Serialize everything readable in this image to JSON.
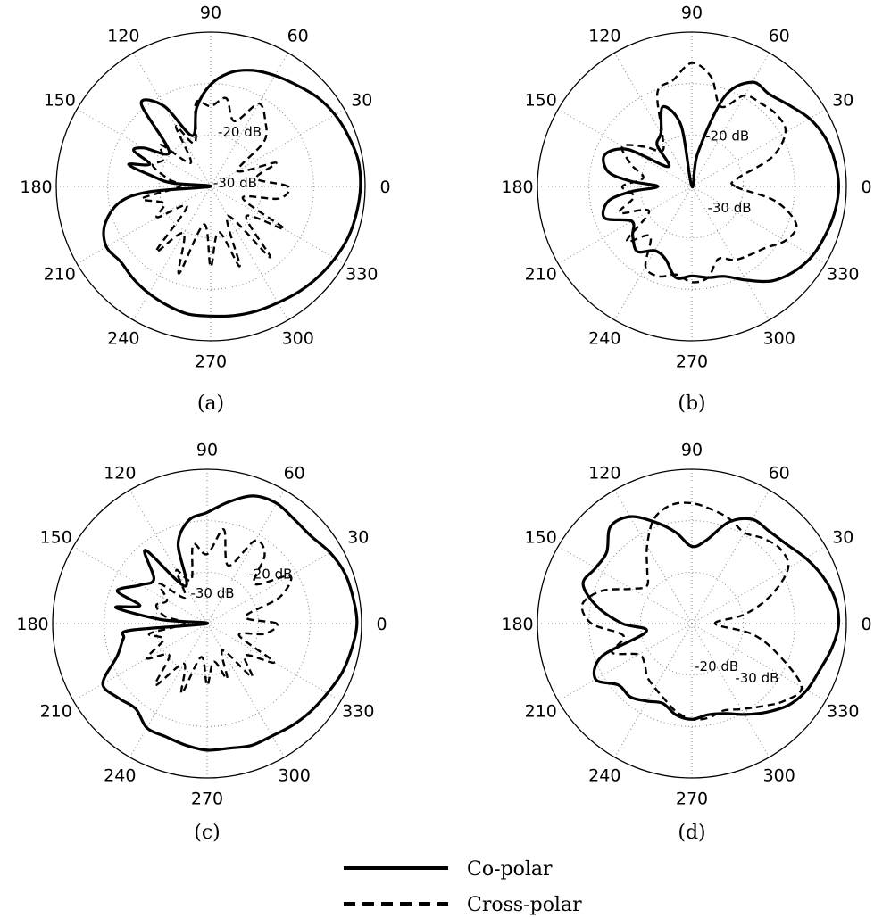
{
  "colors": {
    "curve": "#000000",
    "grid": "#808080",
    "background": "#ffffff"
  },
  "legend": {
    "entries": [
      {
        "label": "Co-polar",
        "style": "solid"
      },
      {
        "label": "Cross-polar",
        "style": "dashed"
      }
    ]
  },
  "chart_data": [
    {
      "type": "polar-line",
      "caption": "(a)",
      "angle_ticks": [
        "0",
        "30",
        "60",
        "90",
        "120",
        "150",
        "180",
        "210",
        "240",
        "270",
        "300",
        "330"
      ],
      "ring_labels": [
        {
          "text": "-20 dB",
          "angle_deg": 62,
          "radius": 0.4
        },
        {
          "text": "-30 dB",
          "angle_deg": 8,
          "radius": 0.16
        }
      ],
      "series": [
        {
          "name": "Co-polar",
          "style": "solid",
          "theta_deg": [
            0,
            10,
            20,
            30,
            40,
            50,
            60,
            70,
            80,
            90,
            100,
            110,
            120,
            130,
            140,
            150,
            155,
            160,
            165,
            170,
            175,
            180,
            185,
            190,
            200,
            210,
            220,
            230,
            240,
            250,
            260,
            270,
            280,
            290,
            300,
            310,
            320,
            330,
            340,
            350,
            360
          ],
          "r": [
            0.97,
            0.97,
            0.95,
            0.93,
            0.9,
            0.86,
            0.83,
            0.8,
            0.75,
            0.66,
            0.52,
            0.35,
            0.6,
            0.7,
            0.35,
            0.5,
            0.55,
            0.42,
            0.55,
            0.38,
            0.25,
            0.0,
            0.4,
            0.6,
            0.73,
            0.78,
            0.76,
            0.78,
            0.8,
            0.82,
            0.84,
            0.84,
            0.85,
            0.86,
            0.87,
            0.89,
            0.91,
            0.93,
            0.95,
            0.96,
            0.97
          ]
        },
        {
          "name": "Cross-polar",
          "style": "dashed",
          "theta_deg": [
            0,
            10,
            20,
            30,
            40,
            50,
            60,
            70,
            80,
            90,
            100,
            110,
            120,
            130,
            140,
            150,
            160,
            170,
            180,
            190,
            200,
            210,
            220,
            230,
            240,
            250,
            260,
            270,
            280,
            290,
            300,
            310,
            320,
            330,
            340,
            350,
            360
          ],
          "r": [
            0.5,
            0.3,
            0.45,
            0.2,
            0.45,
            0.55,
            0.62,
            0.45,
            0.58,
            0.52,
            0.55,
            0.3,
            0.45,
            0.2,
            0.42,
            0.35,
            0.4,
            0.28,
            0.2,
            0.45,
            0.32,
            0.4,
            0.2,
            0.55,
            0.35,
            0.6,
            0.25,
            0.52,
            0.3,
            0.55,
            0.22,
            0.6,
            0.3,
            0.55,
            0.22,
            0.45,
            0.5
          ]
        }
      ]
    },
    {
      "type": "polar-line",
      "caption": "(b)",
      "angle_ticks": [
        "0",
        "30",
        "60",
        "90",
        "120",
        "150",
        "180",
        "210",
        "240",
        "270",
        "300",
        "330"
      ],
      "ring_labels": [
        {
          "text": "-20 dB",
          "angle_deg": 55,
          "radius": 0.4
        },
        {
          "text": "-30 dB",
          "angle_deg": 330,
          "radius": 0.28
        }
      ],
      "series": [
        {
          "name": "Co-polar",
          "style": "solid",
          "theta_deg": [
            0,
            10,
            20,
            30,
            40,
            50,
            60,
            70,
            80,
            90,
            100,
            110,
            120,
            130,
            140,
            150,
            160,
            170,
            175,
            180,
            185,
            190,
            200,
            210,
            220,
            230,
            240,
            250,
            260,
            270,
            280,
            290,
            300,
            310,
            320,
            330,
            340,
            350,
            360
          ],
          "r": [
            0.95,
            0.94,
            0.92,
            0.88,
            0.82,
            0.78,
            0.78,
            0.62,
            0.22,
            0.0,
            0.4,
            0.55,
            0.4,
            0.35,
            0.2,
            0.48,
            0.6,
            0.55,
            0.4,
            0.22,
            0.4,
            0.55,
            0.6,
            0.45,
            0.5,
            0.55,
            0.48,
            0.5,
            0.6,
            0.58,
            0.6,
            0.62,
            0.7,
            0.8,
            0.86,
            0.9,
            0.92,
            0.94,
            0.95
          ]
        },
        {
          "name": "Cross-polar",
          "style": "dashed",
          "theta_deg": [
            0,
            10,
            20,
            30,
            40,
            50,
            60,
            70,
            80,
            90,
            100,
            110,
            120,
            130,
            140,
            150,
            160,
            170,
            180,
            190,
            200,
            210,
            220,
            230,
            240,
            250,
            260,
            270,
            280,
            290,
            300,
            310,
            320,
            330,
            340,
            350,
            360
          ],
          "r": [
            0.28,
            0.3,
            0.55,
            0.7,
            0.72,
            0.7,
            0.68,
            0.55,
            0.72,
            0.8,
            0.7,
            0.65,
            0.38,
            0.3,
            0.4,
            0.52,
            0.42,
            0.32,
            0.45,
            0.38,
            0.5,
            0.32,
            0.55,
            0.42,
            0.6,
            0.62,
            0.58,
            0.62,
            0.6,
            0.5,
            0.55,
            0.58,
            0.62,
            0.7,
            0.72,
            0.55,
            0.28
          ]
        }
      ]
    },
    {
      "type": "polar-line",
      "caption": "(c)",
      "angle_ticks": [
        "0",
        "30",
        "60",
        "90",
        "120",
        "150",
        "180",
        "210",
        "240",
        "270",
        "300",
        "330"
      ],
      "ring_labels": [
        {
          "text": "-20 dB",
          "angle_deg": 38,
          "radius": 0.52
        },
        {
          "text": "-30 dB",
          "angle_deg": 80,
          "radius": 0.2
        }
      ],
      "series": [
        {
          "name": "Co-polar",
          "style": "solid",
          "theta_deg": [
            0,
            10,
            20,
            30,
            40,
            50,
            60,
            70,
            80,
            90,
            100,
            110,
            120,
            130,
            140,
            150,
            160,
            165,
            170,
            175,
            180,
            185,
            190,
            200,
            210,
            220,
            230,
            240,
            250,
            260,
            270,
            280,
            290,
            300,
            310,
            320,
            330,
            340,
            350,
            360
          ],
          "r": [
            0.97,
            0.96,
            0.95,
            0.92,
            0.88,
            0.88,
            0.9,
            0.88,
            0.8,
            0.72,
            0.68,
            0.55,
            0.28,
            0.62,
            0.45,
            0.5,
            0.62,
            0.45,
            0.6,
            0.3,
            0.0,
            0.5,
            0.55,
            0.62,
            0.78,
            0.75,
            0.72,
            0.78,
            0.78,
            0.8,
            0.82,
            0.82,
            0.84,
            0.84,
            0.86,
            0.88,
            0.9,
            0.93,
            0.95,
            0.97
          ]
        },
        {
          "name": "Cross-polar",
          "style": "dashed",
          "theta_deg": [
            0,
            10,
            20,
            30,
            40,
            50,
            60,
            70,
            80,
            90,
            100,
            110,
            120,
            130,
            140,
            150,
            160,
            170,
            180,
            190,
            200,
            210,
            220,
            230,
            240,
            250,
            260,
            270,
            280,
            290,
            300,
            310,
            320,
            330,
            340,
            350,
            360
          ],
          "r": [
            0.45,
            0.25,
            0.5,
            0.62,
            0.4,
            0.58,
            0.62,
            0.4,
            0.62,
            0.45,
            0.52,
            0.3,
            0.4,
            0.22,
            0.4,
            0.3,
            0.35,
            0.28,
            0.15,
            0.38,
            0.3,
            0.45,
            0.32,
            0.52,
            0.3,
            0.48,
            0.22,
            0.4,
            0.25,
            0.38,
            0.2,
            0.45,
            0.32,
            0.5,
            0.22,
            0.38,
            0.45
          ]
        }
      ]
    },
    {
      "type": "polar-line",
      "caption": "(d)",
      "angle_ticks": [
        "0",
        "30",
        "60",
        "90",
        "120",
        "150",
        "180",
        "210",
        "240",
        "270",
        "300",
        "330"
      ],
      "ring_labels": [
        {
          "text": "-20 dB",
          "angle_deg": 300,
          "radius": 0.32
        },
        {
          "text": "-30 dB",
          "angle_deg": 320,
          "radius": 0.55
        }
      ],
      "series": [
        {
          "name": "Co-polar",
          "style": "solid",
          "theta_deg": [
            0,
            10,
            20,
            30,
            40,
            50,
            60,
            70,
            80,
            90,
            100,
            110,
            120,
            130,
            140,
            150,
            160,
            170,
            180,
            190,
            200,
            210,
            220,
            230,
            240,
            250,
            260,
            270,
            280,
            290,
            300,
            310,
            320,
            330,
            340,
            350,
            360
          ],
          "r": [
            0.95,
            0.94,
            0.9,
            0.85,
            0.8,
            0.78,
            0.78,
            0.7,
            0.55,
            0.5,
            0.6,
            0.7,
            0.8,
            0.82,
            0.72,
            0.72,
            0.75,
            0.62,
            0.45,
            0.3,
            0.62,
            0.72,
            0.62,
            0.62,
            0.58,
            0.55,
            0.6,
            0.62,
            0.6,
            0.62,
            0.68,
            0.75,
            0.82,
            0.86,
            0.88,
            0.92,
            0.95
          ]
        },
        {
          "name": "Cross-polar",
          "style": "dashed",
          "theta_deg": [
            0,
            10,
            20,
            30,
            40,
            50,
            60,
            70,
            80,
            90,
            100,
            110,
            120,
            130,
            140,
            150,
            160,
            170,
            180,
            190,
            200,
            210,
            220,
            230,
            240,
            250,
            260,
            270,
            280,
            290,
            300,
            310,
            320,
            330,
            340,
            350,
            360
          ],
          "r": [
            0.15,
            0.35,
            0.55,
            0.72,
            0.75,
            0.72,
            0.68,
            0.72,
            0.75,
            0.78,
            0.78,
            0.72,
            0.58,
            0.45,
            0.38,
            0.45,
            0.62,
            0.72,
            0.65,
            0.45,
            0.55,
            0.4,
            0.4,
            0.45,
            0.48,
            0.52,
            0.58,
            0.62,
            0.62,
            0.6,
            0.64,
            0.7,
            0.78,
            0.82,
            0.6,
            0.4,
            0.15
          ]
        }
      ]
    }
  ]
}
